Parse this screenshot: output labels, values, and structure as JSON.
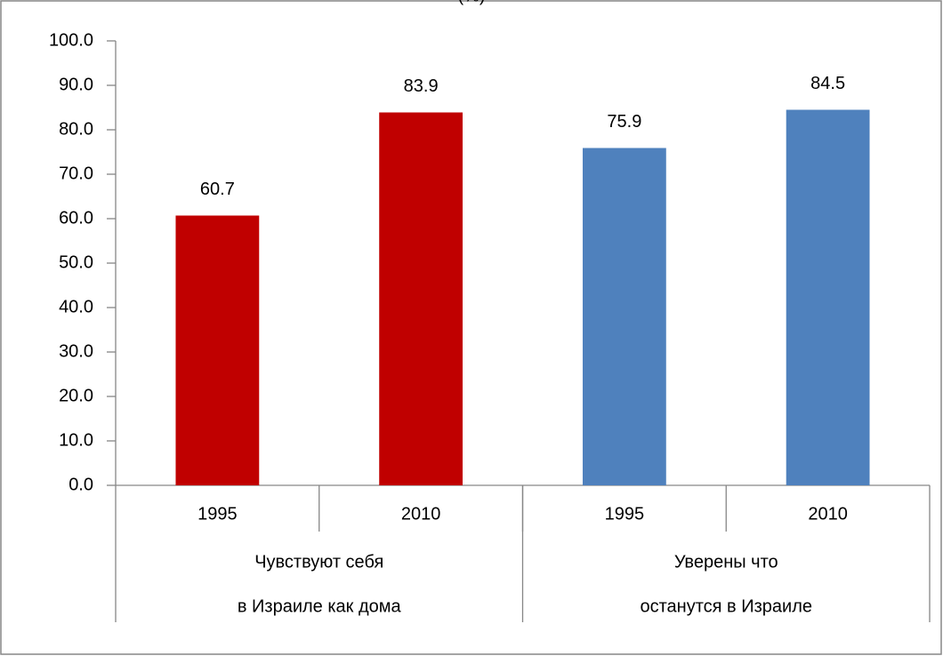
{
  "chart_data": {
    "type": "bar",
    "title": "(%)",
    "categories": [
      "1995",
      "2010",
      "1995",
      "2010"
    ],
    "groups": [
      {
        "lines": [
          "Чувствуют себя",
          "в Израиле как дома"
        ],
        "span": 2
      },
      {
        "lines": [
          "Уверены что",
          "останутся в Израиле"
        ],
        "span": 2
      }
    ],
    "values": [
      60.7,
      83.9,
      75.9,
      84.5
    ],
    "colors": [
      "#c00000",
      "#c00000",
      "#4f81bd",
      "#4f81bd"
    ],
    "ylim": [
      0,
      100
    ],
    "yticks": [
      {
        "value": 0,
        "label": "0.0"
      },
      {
        "value": 10,
        "label": "10.0"
      },
      {
        "value": 20,
        "label": "20.0"
      },
      {
        "value": 30,
        "label": "30.0"
      },
      {
        "value": 40,
        "label": "40.0"
      },
      {
        "value": 50,
        "label": "50.0"
      },
      {
        "value": 60,
        "label": "60.0"
      },
      {
        "value": 70,
        "label": "70.0"
      },
      {
        "value": 80,
        "label": "80.0"
      },
      {
        "value": 90,
        "label": "90.0"
      },
      {
        "value": 100,
        "label": "100.0"
      }
    ],
    "grid": false
  }
}
